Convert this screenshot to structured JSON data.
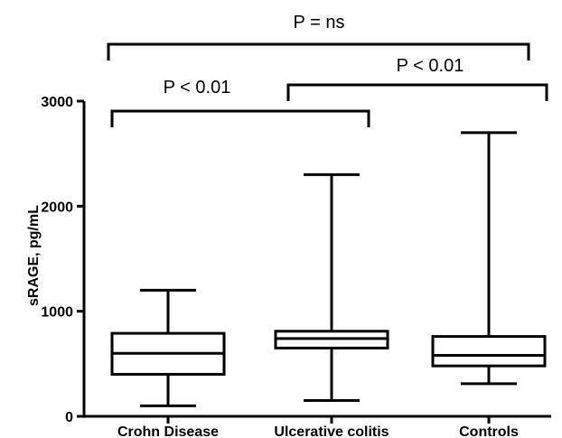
{
  "chart_data": {
    "type": "box",
    "ylabel": "sRAGE, pg/mL",
    "xlabel": "",
    "ylim": [
      0,
      3000
    ],
    "yticks": [
      0,
      1000,
      2000,
      3000
    ],
    "categories": [
      "Crohn Disease",
      "Ulcerative colitis",
      "Controls"
    ],
    "boxes": [
      {
        "category": "Crohn Disease",
        "min": 100,
        "q1": 400,
        "median": 600,
        "q3": 790,
        "max": 1200
      },
      {
        "category": "Ulcerative colitis",
        "min": 150,
        "q1": 650,
        "median": 740,
        "q3": 810,
        "max": 2300
      },
      {
        "category": "Controls",
        "min": 310,
        "q1": 480,
        "median": 580,
        "q3": 760,
        "max": 2700
      }
    ],
    "annotations": [
      {
        "text": "P < 0.01",
        "from": "Crohn Disease",
        "to": "Ulcerative colitis"
      },
      {
        "text": "P < 0.01",
        "from": "Ulcerative colitis",
        "to": "Controls"
      },
      {
        "text": "P = ns",
        "from": "Crohn Disease",
        "to": "Controls"
      }
    ]
  }
}
